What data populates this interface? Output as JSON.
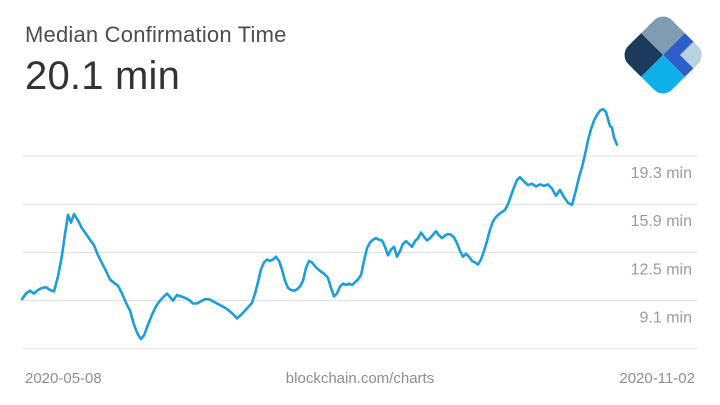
{
  "header": {
    "title": "Median Confirmation Time",
    "value": "20.1 min"
  },
  "footer": {
    "start_date": "2020-05-08",
    "watermark": "blockchain.com/charts",
    "end_date": "2020-11-02"
  },
  "branding": {
    "logo": "blockchain-com-diamond",
    "colors": {
      "north": "#7f9cb3",
      "east": "#2e5ec9",
      "west": "#1b3a5c",
      "south": "#0fb0e8",
      "corner": "#b9d2e2"
    }
  },
  "chart_data": {
    "type": "line",
    "title": "Median Confirmation Time",
    "latest_value_min": 20.1,
    "unit": "min",
    "line_color": "#1b9ed9",
    "grid_color": "#e0e0e0",
    "label_color": "#9b9b9b",
    "x_range": {
      "start": "2020-05-08",
      "end": "2020-11-02"
    },
    "ylim": [
      5.0,
      23.5
    ],
    "legend": "none",
    "y_gridlines": [
      {
        "value": 19.3,
        "label": "19.3 min"
      },
      {
        "value": 15.9,
        "label": "15.9 min"
      },
      {
        "value": 12.5,
        "label": "12.5 min"
      },
      {
        "value": 9.1,
        "label": "9.1 min"
      },
      {
        "value": 5.7,
        "label": ""
      }
    ],
    "points": [
      [
        22,
        9.2
      ],
      [
        26,
        9.6
      ],
      [
        30,
        9.8
      ],
      [
        34,
        9.6
      ],
      [
        38,
        9.85
      ],
      [
        42,
        10.0
      ],
      [
        46,
        10.05
      ],
      [
        50,
        9.85
      ],
      [
        54,
        9.75
      ],
      [
        58,
        10.8
      ],
      [
        62,
        12.3
      ],
      [
        65,
        13.8
      ],
      [
        68,
        15.15
      ],
      [
        71,
        14.6
      ],
      [
        74,
        15.2
      ],
      [
        78,
        14.75
      ],
      [
        82,
        14.2
      ],
      [
        86,
        13.8
      ],
      [
        90,
        13.4
      ],
      [
        94,
        13.0
      ],
      [
        98,
        12.3
      ],
      [
        102,
        11.75
      ],
      [
        106,
        11.2
      ],
      [
        110,
        10.6
      ],
      [
        114,
        10.35
      ],
      [
        118,
        10.15
      ],
      [
        122,
        9.6
      ],
      [
        126,
        8.95
      ],
      [
        130,
        8.4
      ],
      [
        134,
        7.4
      ],
      [
        138,
        6.7
      ],
      [
        141,
        6.4
      ],
      [
        144,
        6.65
      ],
      [
        148,
        7.4
      ],
      [
        152,
        8.1
      ],
      [
        156,
        8.7
      ],
      [
        160,
        9.1
      ],
      [
        164,
        9.4
      ],
      [
        167,
        9.6
      ],
      [
        170,
        9.35
      ],
      [
        173,
        9.1
      ],
      [
        177,
        9.5
      ],
      [
        181,
        9.4
      ],
      [
        185,
        9.3
      ],
      [
        189,
        9.15
      ],
      [
        193,
        8.9
      ],
      [
        197,
        8.9
      ],
      [
        201,
        9.05
      ],
      [
        205,
        9.2
      ],
      [
        209,
        9.2
      ],
      [
        213,
        9.05
      ],
      [
        217,
        8.9
      ],
      [
        221,
        8.75
      ],
      [
        225,
        8.6
      ],
      [
        229,
        8.4
      ],
      [
        233,
        8.15
      ],
      [
        237,
        7.85
      ],
      [
        241,
        8.1
      ],
      [
        245,
        8.4
      ],
      [
        249,
        8.7
      ],
      [
        252,
        8.95
      ],
      [
        255,
        9.6
      ],
      [
        258,
        10.4
      ],
      [
        261,
        11.3
      ],
      [
        264,
        11.8
      ],
      [
        267,
        12.0
      ],
      [
        270,
        11.9
      ],
      [
        273,
        12.0
      ],
      [
        276,
        12.2
      ],
      [
        279,
        11.9
      ],
      [
        282,
        11.3
      ],
      [
        285,
        10.5
      ],
      [
        288,
        10.0
      ],
      [
        291,
        9.85
      ],
      [
        294,
        9.8
      ],
      [
        297,
        9.9
      ],
      [
        300,
        10.1
      ],
      [
        303,
        10.5
      ],
      [
        306,
        11.4
      ],
      [
        309,
        11.9
      ],
      [
        312,
        11.8
      ],
      [
        316,
        11.45
      ],
      [
        320,
        11.2
      ],
      [
        324,
        11.0
      ],
      [
        328,
        10.7
      ],
      [
        331,
        10.0
      ],
      [
        334,
        9.4
      ],
      [
        337,
        9.6
      ],
      [
        340,
        10.1
      ],
      [
        343,
        10.3
      ],
      [
        346,
        10.2
      ],
      [
        349,
        10.3
      ],
      [
        352,
        10.2
      ],
      [
        355,
        10.4
      ],
      [
        358,
        10.6
      ],
      [
        361,
        10.9
      ],
      [
        364,
        11.9
      ],
      [
        367,
        12.8
      ],
      [
        370,
        13.2
      ],
      [
        373,
        13.4
      ],
      [
        376,
        13.5
      ],
      [
        379,
        13.4
      ],
      [
        382,
        13.35
      ],
      [
        385,
        12.9
      ],
      [
        388,
        12.3
      ],
      [
        391,
        12.7
      ],
      [
        394,
        12.9
      ],
      [
        397,
        12.2
      ],
      [
        400,
        12.6
      ],
      [
        403,
        13.1
      ],
      [
        406,
        13.3
      ],
      [
        409,
        13.1
      ],
      [
        412,
        12.9
      ],
      [
        415,
        13.3
      ],
      [
        418,
        13.5
      ],
      [
        421,
        13.9
      ],
      [
        424,
        13.6
      ],
      [
        427,
        13.35
      ],
      [
        430,
        13.5
      ],
      [
        433,
        13.75
      ],
      [
        436,
        14.0
      ],
      [
        439,
        13.7
      ],
      [
        442,
        13.5
      ],
      [
        445,
        13.7
      ],
      [
        448,
        13.8
      ],
      [
        451,
        13.75
      ],
      [
        454,
        13.55
      ],
      [
        457,
        13.15
      ],
      [
        460,
        12.6
      ],
      [
        463,
        12.2
      ],
      [
        466,
        12.4
      ],
      [
        469,
        12.2
      ],
      [
        472,
        11.9
      ],
      [
        475,
        11.8
      ],
      [
        478,
        11.65
      ],
      [
        481,
        12.0
      ],
      [
        484,
        12.6
      ],
      [
        487,
        13.3
      ],
      [
        490,
        14.1
      ],
      [
        493,
        14.7
      ],
      [
        496,
        15.0
      ],
      [
        499,
        15.2
      ],
      [
        502,
        15.35
      ],
      [
        505,
        15.5
      ],
      [
        508,
        15.9
      ],
      [
        511,
        16.5
      ],
      [
        514,
        17.1
      ],
      [
        517,
        17.6
      ],
      [
        520,
        17.8
      ],
      [
        524,
        17.5
      ],
      [
        528,
        17.25
      ],
      [
        532,
        17.35
      ],
      [
        536,
        17.15
      ],
      [
        540,
        17.3
      ],
      [
        544,
        17.2
      ],
      [
        548,
        17.3
      ],
      [
        552,
        17.0
      ],
      [
        556,
        16.5
      ],
      [
        560,
        16.9
      ],
      [
        564,
        16.4
      ],
      [
        568,
        16.0
      ],
      [
        572,
        15.85
      ],
      [
        576,
        16.9
      ],
      [
        579,
        17.8
      ],
      [
        582,
        18.5
      ],
      [
        585,
        19.4
      ],
      [
        588,
        20.4
      ],
      [
        591,
        21.2
      ],
      [
        594,
        21.8
      ],
      [
        597,
        22.2
      ],
      [
        600,
        22.5
      ],
      [
        603,
        22.6
      ],
      [
        606,
        22.4
      ],
      [
        608,
        21.9
      ],
      [
        610,
        21.4
      ],
      [
        612,
        21.3
      ],
      [
        614,
        20.6
      ],
      [
        617,
        20.1
      ]
    ]
  }
}
